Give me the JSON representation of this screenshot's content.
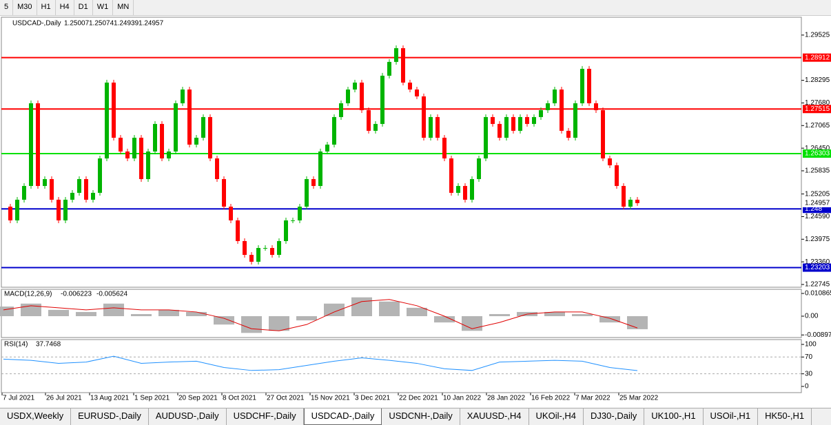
{
  "toolbar": {
    "timeframes": [
      "5",
      "M30",
      "H1",
      "H4",
      "D1",
      "W1",
      "MN"
    ]
  },
  "chart_data": [
    {
      "type": "candlestick",
      "title": "USDCAD-,Daily",
      "ohlc": [
        1.25007,
        1.25074,
        1.24939,
        1.24957
      ],
      "values": [
        1.24861,
        1.24487,
        1.25049,
        1.25423,
        1.27671,
        1.25423,
        1.2561,
        1.25049,
        1.24487,
        1.25049,
        1.25236,
        1.2561,
        1.25049,
        1.25236,
        1.26172,
        1.28233,
        1.26734,
        1.2636,
        1.26172,
        1.26734,
        1.2561,
        1.2636,
        1.27109,
        1.26172,
        1.2636,
        1.27671,
        1.28045,
        1.26547,
        1.26734,
        1.27296,
        1.26172,
        1.2561,
        1.24861,
        1.24487,
        1.23925,
        1.2355,
        1.23363,
        1.23737,
        1.23737,
        1.2355,
        1.23925,
        1.24487,
        1.24487,
        1.24861,
        1.2561,
        1.25423,
        1.2636,
        1.26547,
        1.27296,
        1.27671,
        1.28045,
        1.28233,
        1.27483,
        1.26922,
        1.27109,
        1.2842,
        1.28795,
        1.29169,
        1.28233,
        1.28045,
        1.27858,
        1.26734,
        1.27296,
        1.26734,
        1.26172,
        1.25236,
        1.25423,
        1.25049,
        1.2561,
        1.26172,
        1.27296,
        1.27109,
        1.26734,
        1.27296,
        1.26922,
        1.27296,
        1.27109,
        1.27296,
        1.27483,
        1.27671,
        1.28045,
        1.26922,
        1.26734,
        1.27671,
        1.28607,
        1.27671,
        1.27483,
        1.26172,
        1.25985,
        1.25423,
        1.24861,
        1.25049,
        1.24957
      ],
      "xlim": [
        0,
        92
      ],
      "xticks": [
        {
          "value": -0.2,
          "label": "7 Jul 2021"
        },
        {
          "value": 6.1,
          "label": "26 Jul 2021"
        },
        {
          "value": 12.5,
          "label": "13 Aug 2021"
        },
        {
          "value": 18.9,
          "label": "1 Sep 2021"
        },
        {
          "value": 25.3,
          "label": "20 Sep 2021"
        },
        {
          "value": 31.7,
          "label": "8 Oct 2021"
        },
        {
          "value": 38.1,
          "label": "27 Oct 2021"
        },
        {
          "value": 44.5,
          "label": "15 Nov 2021"
        },
        {
          "value": 50.9,
          "label": "3 Dec 2021"
        },
        {
          "value": 57.3,
          "label": "22 Dec 2021"
        },
        {
          "value": 63.7,
          "label": "10 Jan 2022"
        },
        {
          "value": 70.1,
          "label": "28 Jan 2022"
        },
        {
          "value": 76.5,
          "label": "16 Feb 2022"
        },
        {
          "value": 82.9,
          "label": "7 Mar 2022"
        },
        {
          "value": 89.3,
          "label": "25 Mar 2022"
        }
      ],
      "ylim": [
        1.2267,
        1.3001
      ],
      "yticks": [
        1.29525,
        1.28295,
        {
          "value": 1.2768,
          "label": "1.27680"
        },
        1.27065,
        {
          "value": 1.2645,
          "label": "1.26450"
        },
        1.25835,
        1.25205,
        {
          "value": 1.2459,
          "label": "1.24590"
        },
        1.23975,
        {
          "value": 1.2336,
          "label": "1.23360"
        },
        1.22745
      ],
      "levels": [
        {
          "value": 1.28912,
          "color": "#ff0000"
        },
        {
          "value": 1.27515,
          "color": "#ff0000"
        },
        {
          "value": 1.26303,
          "color": "#00e000"
        },
        {
          "value": 1.248,
          "color": "#0000cc"
        },
        {
          "value": 1.23203,
          "color": "#0000cc"
        }
      ],
      "colors": {
        "up": "#00b400",
        "down": "#ff0000"
      }
    },
    {
      "type": "histogram",
      "title": "MACD(12,26,9)",
      "readings": [
        -0.006223,
        -0.005624
      ],
      "values": [
        0.0046,
        0.006,
        0.003,
        0.002,
        0.006,
        0.001,
        0.003,
        0.002,
        -0.004,
        -0.008,
        -0.007,
        -0.002,
        0.006,
        0.009,
        0.007,
        0.004,
        -0.003,
        -0.007,
        0.001,
        0.002,
        0.002,
        0.001,
        -0.003,
        -0.006223
      ],
      "signal": [
        0.003,
        0.005,
        0.004,
        0.003,
        0.004,
        0.003,
        0.003,
        0.002,
        -0.001,
        -0.006,
        -0.007,
        -0.004,
        0.002,
        0.007,
        0.008,
        0.005,
        0,
        -0.006,
        -0.003,
        0.001,
        0.002,
        0.002,
        -0.001,
        -0.005624
      ],
      "xlim": [
        0,
        23
      ],
      "ylim": [
        -0.0102,
        0.01284
      ],
      "yticks": [
        0.010865,
        {
          "value": 0,
          "label": "0.00"
        },
        -0.008974
      ],
      "color": "#b4b4b4",
      "signal_color": "#e00000"
    },
    {
      "type": "line",
      "title": "RSI(14)",
      "reading": 37.7468,
      "values": [
        65,
        62,
        55,
        58,
        72,
        55,
        58,
        60,
        45,
        38,
        40,
        50,
        60,
        68,
        62,
        55,
        42,
        38,
        58,
        60,
        62,
        60,
        45,
        37.7468
      ],
      "xlim": [
        0,
        23
      ],
      "ylim": [
        -14.8,
        111.5
      ],
      "yticks": [
        100,
        70,
        30,
        0
      ],
      "levels": [
        70,
        30
      ],
      "color": "#1e90ff"
    }
  ],
  "tabs": [
    "USDX,Weekly",
    "EURUSD-,Daily",
    "AUDUSD-,Daily",
    "USDCHF-,Daily",
    "USDCAD-,Daily",
    "USDCNH-,Daily",
    "XAUUSD-,H4",
    "UKOil-,H4",
    "DJ30-,Daily",
    "UK100-,H1",
    "USOil-,H1",
    "HK50-,H1"
  ],
  "active_tab": 4
}
